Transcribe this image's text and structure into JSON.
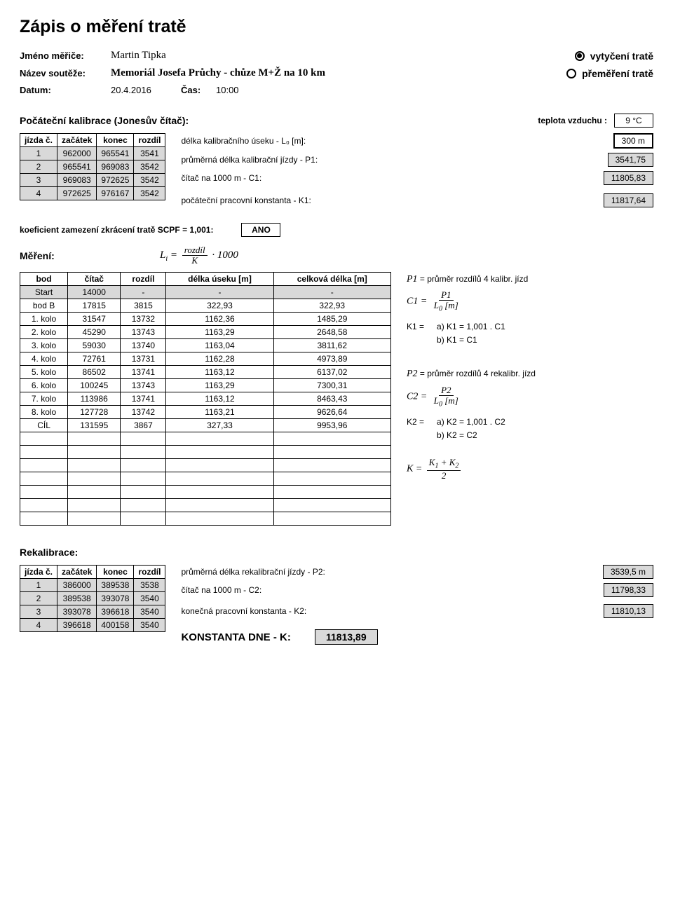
{
  "title": "Zápis o měření tratě",
  "header": {
    "measurer_label": "Jméno měřiče:",
    "measurer": "Martin Tipka",
    "track_marking": "vytyčení tratě",
    "competition_label": "Název soutěže:",
    "competition": "Memoriál Josefa Průchy - chůze M+Ž na 10 km",
    "remeasure": "přeměření tratě",
    "date_label": "Datum:",
    "date": "20.4.2016",
    "time_label": "Čas:",
    "time": "10:00"
  },
  "calibration": {
    "heading": "Počáteční kalibrace (Jonesův čítač):",
    "temp_label": "teplota vzduchu :",
    "temp_value": "9 °C",
    "cols": [
      "jízda č.",
      "začátek",
      "konec",
      "rozdíl"
    ],
    "rows": [
      [
        "1",
        "962000",
        "965541",
        "3541"
      ],
      [
        "2",
        "965541",
        "969083",
        "3542"
      ],
      [
        "3",
        "969083",
        "972625",
        "3542"
      ],
      [
        "4",
        "972625",
        "976167",
        "3542"
      ]
    ],
    "l0_label": "délka kalibračního úseku - L₀ [m]:",
    "l0_value": "300 m",
    "p1_label": "průměrná délka kalibrační jízdy - P1:",
    "p1_value": "3541,75",
    "c1_label": "čítač na 1000 m - C1:",
    "c1_value": "11805,83",
    "k1_label": "počáteční pracovní konstanta - K1:",
    "k1_value": "11817,64"
  },
  "scpf": {
    "label": "koeficient zamezení zkrácení tratě SCPF = 1,001:",
    "value": "ANO"
  },
  "measurement": {
    "heading": "Měření:",
    "table_cols": [
      "bod",
      "čítač",
      "rozdíl",
      "délka úseku [m]",
      "celková délka [m]"
    ],
    "rows": [
      {
        "c": [
          "Start",
          "14000",
          "-",
          "-",
          "-"
        ],
        "shade": true
      },
      {
        "c": [
          "bod B",
          "17815",
          "3815",
          "322,93",
          "322,93"
        ]
      },
      {
        "c": [
          "1. kolo",
          "31547",
          "13732",
          "1162,36",
          "1485,29"
        ]
      },
      {
        "c": [
          "2. kolo",
          "45290",
          "13743",
          "1163,29",
          "2648,58"
        ]
      },
      {
        "c": [
          "3. kolo",
          "59030",
          "13740",
          "1163,04",
          "3811,62"
        ]
      },
      {
        "c": [
          "4. kolo",
          "72761",
          "13731",
          "1162,28",
          "4973,89"
        ]
      },
      {
        "c": [
          "5. kolo",
          "86502",
          "13741",
          "1163,12",
          "6137,02"
        ]
      },
      {
        "c": [
          "6. kolo",
          "100245",
          "13743",
          "1163,29",
          "7300,31"
        ]
      },
      {
        "c": [
          "7. kolo",
          "113986",
          "13741",
          "1163,12",
          "8463,43"
        ]
      },
      {
        "c": [
          "8. kolo",
          "127728",
          "13742",
          "1163,21",
          "9626,64"
        ]
      },
      {
        "c": [
          "CÍL",
          "131595",
          "3867",
          "327,33",
          "9953,96"
        ]
      },
      {
        "c": [
          "",
          "",
          "",
          "",
          ""
        ]
      },
      {
        "c": [
          "",
          "",
          "",
          "",
          ""
        ]
      },
      {
        "c": [
          "",
          "",
          "",
          "",
          ""
        ]
      },
      {
        "c": [
          "",
          "",
          "",
          "",
          ""
        ]
      },
      {
        "c": [
          "",
          "",
          "",
          "",
          ""
        ]
      },
      {
        "c": [
          "",
          "",
          "",
          "",
          ""
        ]
      },
      {
        "c": [
          "",
          "",
          "",
          "",
          ""
        ]
      }
    ],
    "side": {
      "p1_text": "P1 = průměr rozdílů 4 kalibr. jízd",
      "k1_eq_label": "K1 =",
      "k1_a": "a)  K1 = 1,001 . C1",
      "k1_b": "b)  K1 = C1",
      "p2_text": "P2 = průměr rozdílů 4 rekalibr. jízd",
      "k2_eq_label": "K2 =",
      "k2_a": "a)  K2 = 1,001 . C2",
      "k2_b": "b)  K2 = C2"
    }
  },
  "recalibration": {
    "heading": "Rekalibrace:",
    "cols": [
      "jízda č.",
      "začátek",
      "konec",
      "rozdíl"
    ],
    "rows": [
      [
        "1",
        "386000",
        "389538",
        "3538"
      ],
      [
        "2",
        "389538",
        "393078",
        "3540"
      ],
      [
        "3",
        "393078",
        "396618",
        "3540"
      ],
      [
        "4",
        "396618",
        "400158",
        "3540"
      ]
    ],
    "p2_label": "průměrná délka rekalibrační jízdy - P2:",
    "p2_value": "3539,5 m",
    "c2_label": "čítač na 1000 m - C2:",
    "c2_value": "11798,33",
    "k2_label": "konečná pracovní konstanta - K2:",
    "k2_value": "11810,13",
    "const_label": "KONSTANTA DNE - K:",
    "const_value": "11813,89"
  },
  "colors": {
    "shaded": "#d9d9d9",
    "text": "#000000",
    "bg": "#ffffff"
  }
}
